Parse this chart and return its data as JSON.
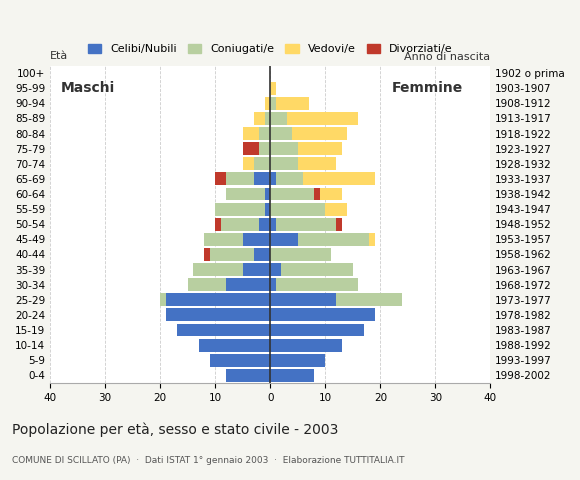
{
  "age_groups": [
    "0-4",
    "5-9",
    "10-14",
    "15-19",
    "20-24",
    "25-29",
    "30-34",
    "35-39",
    "40-44",
    "45-49",
    "50-54",
    "55-59",
    "60-64",
    "65-69",
    "70-74",
    "75-79",
    "80-84",
    "85-89",
    "90-94",
    "95-99",
    "100+"
  ],
  "birth_years": [
    "1998-2002",
    "1993-1997",
    "1988-1992",
    "1983-1987",
    "1978-1982",
    "1973-1977",
    "1968-1972",
    "1963-1967",
    "1958-1962",
    "1953-1957",
    "1948-1952",
    "1943-1947",
    "1938-1942",
    "1933-1937",
    "1928-1932",
    "1923-1927",
    "1918-1922",
    "1913-1917",
    "1908-1912",
    "1903-1907",
    "1902 o prima"
  ],
  "males": {
    "celibe": [
      8,
      11,
      13,
      17,
      19,
      19,
      8,
      5,
      3,
      5,
      2,
      1,
      1,
      3,
      0,
      0,
      0,
      0,
      0,
      0,
      0
    ],
    "coniugato": [
      0,
      0,
      0,
      0,
      0,
      1,
      7,
      9,
      8,
      7,
      7,
      9,
      7,
      5,
      3,
      2,
      2,
      1,
      0,
      0,
      0
    ],
    "vedovo": [
      0,
      0,
      0,
      0,
      0,
      0,
      0,
      0,
      0,
      0,
      0,
      0,
      0,
      1,
      2,
      2,
      3,
      2,
      1,
      0,
      0
    ],
    "divorziato": [
      0,
      0,
      0,
      0,
      0,
      0,
      0,
      0,
      1,
      0,
      1,
      0,
      0,
      2,
      0,
      3,
      0,
      0,
      0,
      0,
      0
    ]
  },
  "females": {
    "nubile": [
      8,
      10,
      13,
      17,
      19,
      12,
      1,
      2,
      0,
      5,
      1,
      0,
      0,
      1,
      0,
      0,
      0,
      0,
      0,
      0,
      0
    ],
    "coniugata": [
      0,
      0,
      0,
      0,
      0,
      12,
      15,
      13,
      11,
      13,
      11,
      10,
      8,
      5,
      5,
      5,
      4,
      3,
      1,
      0,
      0
    ],
    "vedova": [
      0,
      0,
      0,
      0,
      0,
      0,
      0,
      0,
      0,
      1,
      1,
      4,
      5,
      13,
      7,
      8,
      10,
      13,
      6,
      1,
      0
    ],
    "divorziata": [
      0,
      0,
      0,
      0,
      0,
      0,
      0,
      0,
      0,
      0,
      1,
      0,
      1,
      0,
      0,
      0,
      0,
      0,
      0,
      0,
      0
    ]
  },
  "colors": {
    "celibe": "#4472c4",
    "coniugato": "#b8cfa0",
    "vedovo": "#ffd966",
    "divorziato": "#c0392b"
  },
  "xlim": 40,
  "xticks": [
    -40,
    -30,
    -20,
    -10,
    0,
    10,
    20,
    30,
    40
  ],
  "title": "Popolazione per età, sesso e stato civile - 2003",
  "subtitle": "COMUNE DI SCILLATO (PA)  ·  Dati ISTAT 1° gennaio 2003  ·  Elaborazione TUTTITALIA.IT",
  "legend_labels": [
    "Celibi/Nubili",
    "Coniugati/e",
    "Vedovi/e",
    "Divorziati/e"
  ],
  "bg_color": "#f5f5f0",
  "plot_bg": "#ffffff"
}
